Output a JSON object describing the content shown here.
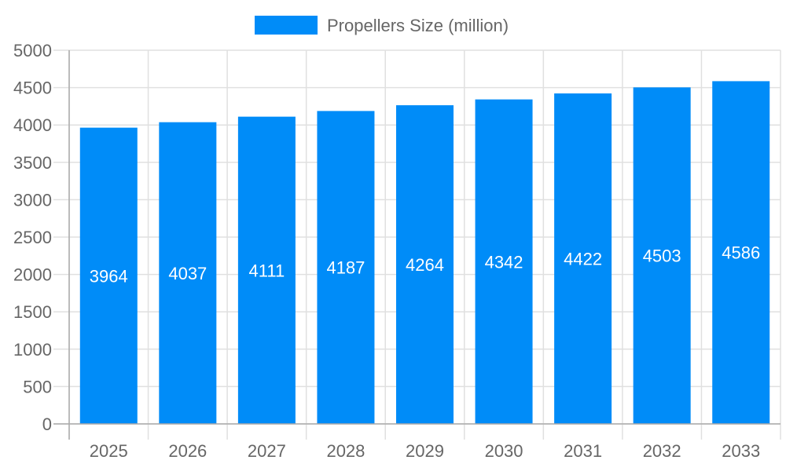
{
  "chart_data": {
    "type": "bar",
    "title": "",
    "xlabel": "",
    "ylabel": "",
    "categories": [
      "2025",
      "2026",
      "2027",
      "2028",
      "2029",
      "2030",
      "2031",
      "2032",
      "2033"
    ],
    "series": [
      {
        "name": "Propellers Size (million)",
        "values": [
          3964,
          4037,
          4111,
          4187,
          4264,
          4342,
          4422,
          4503,
          4586
        ],
        "color": "#008cf8"
      }
    ],
    "ylim": [
      0,
      5000
    ],
    "yticks": [
      "0",
      "500",
      "1000",
      "1500",
      "2000",
      "2500",
      "3000",
      "3500",
      "4000",
      "4500",
      "5000"
    ],
    "grid": true,
    "legend": "top-center",
    "data_labels": true
  }
}
